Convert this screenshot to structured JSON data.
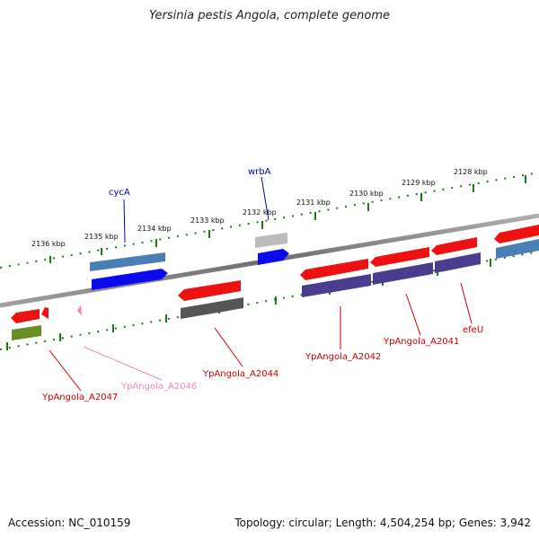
{
  "title": "Yersinia pestis Angola, complete genome",
  "footer": {
    "accession": "Accession: NC_010159",
    "summary": "Topology: circular; Length: 4,504,254 bp; Genes: 3,942"
  },
  "tick_labels": [
    {
      "label": "2128 kbp"
    },
    {
      "label": "2129 kbp"
    },
    {
      "label": "2130 kbp"
    },
    {
      "label": "2131 kbp"
    },
    {
      "label": "2132 kbp"
    },
    {
      "label": "2133 kbp"
    },
    {
      "label": "2134 kbp"
    },
    {
      "label": "2135 kbp"
    },
    {
      "label": "2136 kbp"
    }
  ],
  "gene_labels": [
    {
      "name": "cycA",
      "color": "#0000aa"
    },
    {
      "name": "wrbA",
      "color": "#0000aa"
    },
    {
      "name": "YpAngola_A2047",
      "color": "#cc0000"
    },
    {
      "name": "YpAngola_A2046",
      "color": "#ee88bb"
    },
    {
      "name": "YpAngola_A2044",
      "color": "#cc0000"
    },
    {
      "name": "YpAngola_A2042",
      "color": "#cc0000"
    },
    {
      "name": "YpAngola_A2041",
      "color": "#cc0000"
    },
    {
      "name": "efeU",
      "color": "#cc0000"
    }
  ],
  "colors": {
    "cds_red": "#ee1111",
    "cds_blue": "#0a0aee",
    "cds_steel": "#4a7fb5",
    "cds_purple": "#4a3d8f",
    "cds_gray": "#555555",
    "cds_lightgray": "#bbbbbb",
    "cds_olive": "#6b8e23",
    "cds_pink": "#ee88bb",
    "tick_green": "#1a7a1a",
    "backbone": "#808080"
  }
}
